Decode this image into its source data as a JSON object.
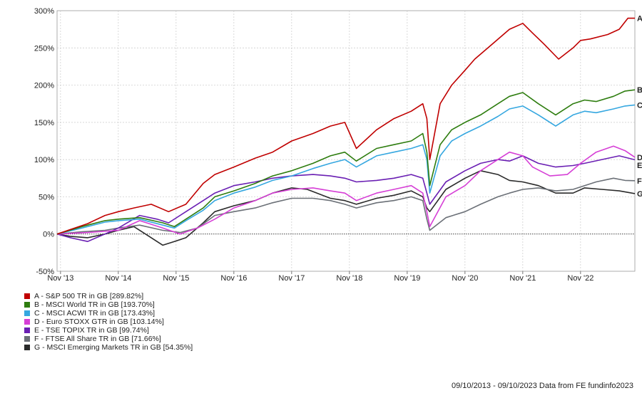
{
  "chart_data": {
    "type": "line",
    "y_ticks": [
      "300%",
      "250%",
      "200%",
      "150%",
      "100%",
      "50%",
      "0%",
      "-50%"
    ],
    "y_tick_values": [
      300,
      250,
      200,
      150,
      100,
      50,
      0,
      -50
    ],
    "ylim": [
      -50,
      300
    ],
    "x_ticks": [
      "Nov '13",
      "Nov '14",
      "Nov '15",
      "Nov '16",
      "Nov '17",
      "Nov '18",
      "Nov '19",
      "Nov '20",
      "Nov '21",
      "Nov '22"
    ],
    "x_tick_values": [
      2013.83,
      2014.83,
      2015.83,
      2016.83,
      2017.83,
      2018.83,
      2019.83,
      2020.83,
      2021.83,
      2022.83
    ],
    "xlim": [
      2013.77,
      2023.77
    ],
    "grid": true,
    "series": [
      {
        "id": "A",
        "name": "A - S&P 500 TR in GB [289.82%]",
        "color": "#c00000",
        "x": [
          2013.77,
          2014.0,
          2014.3,
          2014.6,
          2014.83,
          2015.1,
          2015.4,
          2015.7,
          2016.0,
          2016.3,
          2016.5,
          2016.83,
          2017.2,
          2017.5,
          2017.83,
          2018.2,
          2018.5,
          2018.75,
          2018.95,
          2019.3,
          2019.6,
          2019.9,
          2020.1,
          2020.17,
          2020.22,
          2020.4,
          2020.6,
          2020.83,
          2021.0,
          2021.3,
          2021.6,
          2021.83,
          2022.0,
          2022.2,
          2022.45,
          2022.7,
          2022.83,
          2023.0,
          2023.3,
          2023.5,
          2023.65,
          2023.77
        ],
        "y": [
          0,
          6,
          14,
          25,
          30,
          35,
          40,
          30,
          40,
          68,
          80,
          90,
          102,
          110,
          125,
          135,
          145,
          150,
          115,
          140,
          155,
          165,
          175,
          155,
          100,
          175,
          200,
          220,
          235,
          255,
          275,
          283,
          270,
          255,
          235,
          250,
          260,
          262,
          268,
          275,
          290,
          289.82
        ]
      },
      {
        "id": "B",
        "name": "B - MSCI World TR in GB [193.70%]",
        "color": "#2e7d0f",
        "x": [
          2013.77,
          2014.2,
          2014.6,
          2014.83,
          2015.2,
          2015.6,
          2015.8,
          2016.0,
          2016.3,
          2016.5,
          2016.83,
          2017.2,
          2017.5,
          2017.83,
          2018.2,
          2018.5,
          2018.75,
          2018.95,
          2019.3,
          2019.6,
          2019.9,
          2020.1,
          2020.17,
          2020.22,
          2020.4,
          2020.6,
          2020.83,
          2021.1,
          2021.4,
          2021.6,
          2021.83,
          2022.1,
          2022.4,
          2022.7,
          2022.9,
          2023.1,
          2023.4,
          2023.6,
          2023.77
        ],
        "y": [
          0,
          10,
          18,
          20,
          22,
          15,
          10,
          20,
          35,
          50,
          58,
          68,
          78,
          85,
          95,
          105,
          110,
          98,
          115,
          120,
          125,
          135,
          110,
          65,
          120,
          140,
          150,
          160,
          175,
          185,
          190,
          175,
          160,
          175,
          180,
          178,
          185,
          192,
          193.7
        ]
      },
      {
        "id": "C",
        "name": "C - MSCI ACWI TR in GB [173.43%]",
        "color": "#35a7e0",
        "x": [
          2013.77,
          2014.2,
          2014.6,
          2014.83,
          2015.2,
          2015.6,
          2015.8,
          2016.0,
          2016.3,
          2016.5,
          2016.83,
          2017.2,
          2017.5,
          2017.83,
          2018.2,
          2018.5,
          2018.75,
          2018.95,
          2019.3,
          2019.6,
          2019.9,
          2020.1,
          2020.17,
          2020.22,
          2020.4,
          2020.6,
          2020.83,
          2021.1,
          2021.4,
          2021.6,
          2021.83,
          2022.1,
          2022.4,
          2022.7,
          2022.9,
          2023.1,
          2023.4,
          2023.6,
          2023.77
        ],
        "y": [
          0,
          8,
          16,
          18,
          20,
          12,
          8,
          18,
          32,
          45,
          55,
          63,
          72,
          78,
          88,
          95,
          100,
          90,
          105,
          110,
          115,
          120,
          100,
          55,
          105,
          125,
          135,
          145,
          158,
          168,
          172,
          160,
          145,
          160,
          165,
          163,
          168,
          172,
          173.43
        ]
      },
      {
        "id": "D",
        "name": "D - Euro STOXX GTR in GB [103.14%]",
        "color": "#d63fd6",
        "x": [
          2013.77,
          2014.3,
          2014.83,
          2015.2,
          2015.6,
          2015.9,
          2016.2,
          2016.5,
          2016.83,
          2017.2,
          2017.5,
          2017.83,
          2018.2,
          2018.5,
          2018.75,
          2018.95,
          2019.3,
          2019.6,
          2019.9,
          2020.1,
          2020.17,
          2020.22,
          2020.5,
          2020.83,
          2021.1,
          2021.4,
          2021.6,
          2021.83,
          2022.0,
          2022.3,
          2022.6,
          2022.83,
          2023.1,
          2023.4,
          2023.6,
          2023.77
        ],
        "y": [
          0,
          2,
          5,
          18,
          8,
          0,
          8,
          20,
          35,
          45,
          55,
          60,
          62,
          58,
          55,
          45,
          55,
          60,
          65,
          55,
          30,
          10,
          50,
          65,
          85,
          100,
          110,
          105,
          90,
          78,
          80,
          95,
          110,
          118,
          112,
          103.14
        ]
      },
      {
        "id": "E",
        "name": "E - TSE TOPIX TR in GB [99.74%]",
        "color": "#6a1fb3",
        "x": [
          2013.77,
          2014.0,
          2014.3,
          2014.6,
          2014.83,
          2015.2,
          2015.5,
          2015.7,
          2016.0,
          2016.3,
          2016.5,
          2016.83,
          2017.2,
          2017.5,
          2017.83,
          2018.2,
          2018.5,
          2018.75,
          2018.95,
          2019.3,
          2019.6,
          2019.9,
          2020.1,
          2020.17,
          2020.22,
          2020.5,
          2020.83,
          2021.1,
          2021.4,
          2021.6,
          2021.83,
          2022.1,
          2022.4,
          2022.7,
          2022.9,
          2023.2,
          2023.5,
          2023.77
        ],
        "y": [
          0,
          -5,
          -10,
          0,
          8,
          25,
          20,
          15,
          30,
          45,
          55,
          65,
          70,
          75,
          78,
          80,
          78,
          75,
          70,
          72,
          75,
          80,
          75,
          55,
          40,
          70,
          85,
          95,
          100,
          98,
          105,
          95,
          90,
          92,
          95,
          100,
          105,
          99.74
        ]
      },
      {
        "id": "F",
        "name": "F - FTSE All Share TR in GB [71.66%]",
        "color": "#6b7077",
        "x": [
          2013.77,
          2014.2,
          2014.6,
          2014.83,
          2015.2,
          2015.6,
          2015.9,
          2016.2,
          2016.5,
          2016.83,
          2017.2,
          2017.5,
          2017.83,
          2018.2,
          2018.5,
          2018.75,
          2018.95,
          2019.3,
          2019.6,
          2019.9,
          2020.1,
          2020.17,
          2020.22,
          2020.5,
          2020.83,
          2021.1,
          2021.4,
          2021.6,
          2021.83,
          2022.1,
          2022.4,
          2022.7,
          2022.9,
          2023.1,
          2023.4,
          2023.6,
          2023.77
        ],
        "y": [
          0,
          3,
          5,
          8,
          12,
          5,
          2,
          8,
          25,
          30,
          35,
          42,
          48,
          48,
          45,
          40,
          35,
          42,
          45,
          50,
          45,
          20,
          5,
          22,
          30,
          40,
          50,
          55,
          60,
          62,
          58,
          60,
          65,
          70,
          75,
          72,
          71.66
        ]
      },
      {
        "id": "G",
        "name": "G - MSCI Emerging Markets TR in GB [54.35%]",
        "color": "#2a2a2a",
        "x": [
          2013.77,
          2014.0,
          2014.3,
          2014.6,
          2014.83,
          2015.1,
          2015.3,
          2015.6,
          2015.8,
          2016.0,
          2016.3,
          2016.5,
          2016.83,
          2017.2,
          2017.5,
          2017.83,
          2018.1,
          2018.5,
          2018.75,
          2018.95,
          2019.3,
          2019.6,
          2019.9,
          2020.1,
          2020.17,
          2020.22,
          2020.5,
          2020.83,
          2021.1,
          2021.4,
          2021.6,
          2021.83,
          2022.1,
          2022.4,
          2022.7,
          2022.9,
          2023.2,
          2023.5,
          2023.77
        ],
        "y": [
          0,
          -3,
          -5,
          0,
          5,
          10,
          0,
          -15,
          -10,
          -5,
          15,
          30,
          38,
          45,
          55,
          62,
          60,
          48,
          45,
          40,
          48,
          52,
          58,
          50,
          35,
          30,
          60,
          75,
          85,
          80,
          72,
          70,
          65,
          55,
          55,
          62,
          60,
          58,
          54.35
        ]
      }
    ]
  },
  "legend": [
    {
      "label": "A - S&P 500 TR in GB [289.82%]",
      "color": "#c00000"
    },
    {
      "label": "B - MSCI World TR in GB [193.70%]",
      "color": "#2e7d0f"
    },
    {
      "label": "C - MSCI ACWI TR in GB [173.43%]",
      "color": "#35a7e0"
    },
    {
      "label": "D - Euro STOXX GTR in GB [103.14%]",
      "color": "#d63fd6"
    },
    {
      "label": "E - TSE TOPIX TR in GB [99.74%]",
      "color": "#6a1fb3"
    },
    {
      "label": "F - FTSE All Share TR in GB [71.66%]",
      "color": "#6b7077"
    },
    {
      "label": "G - MSCI Emerging Markets TR in GB [54.35%]",
      "color": "#2a2a2a"
    }
  ],
  "footer": {
    "text": "09/10/2013 - 09/10/2023 Data from FE fundinfo2023"
  }
}
